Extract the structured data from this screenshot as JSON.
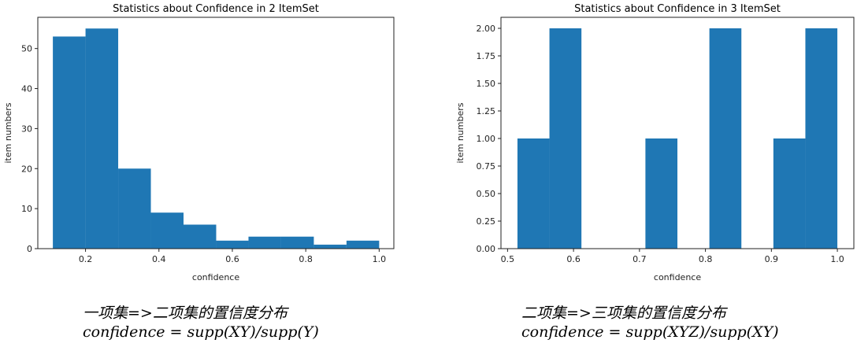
{
  "chart_data": [
    {
      "type": "bar",
      "subtype": "histogram",
      "title": "Statistics about Confidence in 2 ItemSet",
      "xlabel": "confidence",
      "ylabel": "item numbers",
      "xlim": [
        0.07,
        1.04
      ],
      "ylim": [
        0,
        57.8
      ],
      "bin_edges": [
        0.111,
        0.2,
        0.289,
        0.378,
        0.467,
        0.556,
        0.644,
        0.733,
        0.822,
        0.911,
        1.0
      ],
      "values": [
        53,
        55,
        20,
        9,
        6,
        2,
        3,
        3,
        1,
        2
      ],
      "xticks": [
        0.2,
        0.4,
        0.6,
        0.8,
        1.0
      ],
      "xtick_labels": [
        "0.2",
        "0.4",
        "0.6",
        "0.8",
        "1.0"
      ],
      "yticks": [
        0,
        10,
        20,
        30,
        40,
        50
      ],
      "ytick_labels": [
        "0",
        "10",
        "20",
        "30",
        "40",
        "50"
      ],
      "color": "#1f77b4",
      "grid": false
    },
    {
      "type": "bar",
      "subtype": "histogram",
      "title": "Statistics about Confidence in 3 ItemSet",
      "xlabel": "confidence",
      "ylabel": "item numbers",
      "xlim": [
        0.49,
        1.025
      ],
      "ylim": [
        0,
        2.1
      ],
      "bin_edges": [
        0.515,
        0.5635,
        0.612,
        0.6605,
        0.709,
        0.7575,
        0.806,
        0.8545,
        0.903,
        0.9515,
        1.0
      ],
      "values": [
        1,
        2,
        0,
        0,
        1,
        0,
        2,
        0,
        1,
        2
      ],
      "xticks": [
        0.5,
        0.6,
        0.7,
        0.8,
        0.9,
        1.0
      ],
      "xtick_labels": [
        "0.5",
        "0.6",
        "0.7",
        "0.8",
        "0.9",
        "1.0"
      ],
      "yticks": [
        0,
        0.25,
        0.5,
        0.75,
        1.0,
        1.25,
        1.5,
        1.75,
        2.0
      ],
      "ytick_labels": [
        "0.00",
        "0.25",
        "0.50",
        "0.75",
        "1.00",
        "1.25",
        "1.50",
        "1.75",
        "2.00"
      ],
      "color": "#1f77b4",
      "grid": false
    }
  ],
  "captions": [
    {
      "line1": "一项集=>二项集的置信度分布",
      "line2": "confidence = supp(XY)/supp(Y)"
    },
    {
      "line1": "二项集=>三项集的置信度分布",
      "line2": "confidence = supp(XYZ)/supp(XY)"
    }
  ]
}
